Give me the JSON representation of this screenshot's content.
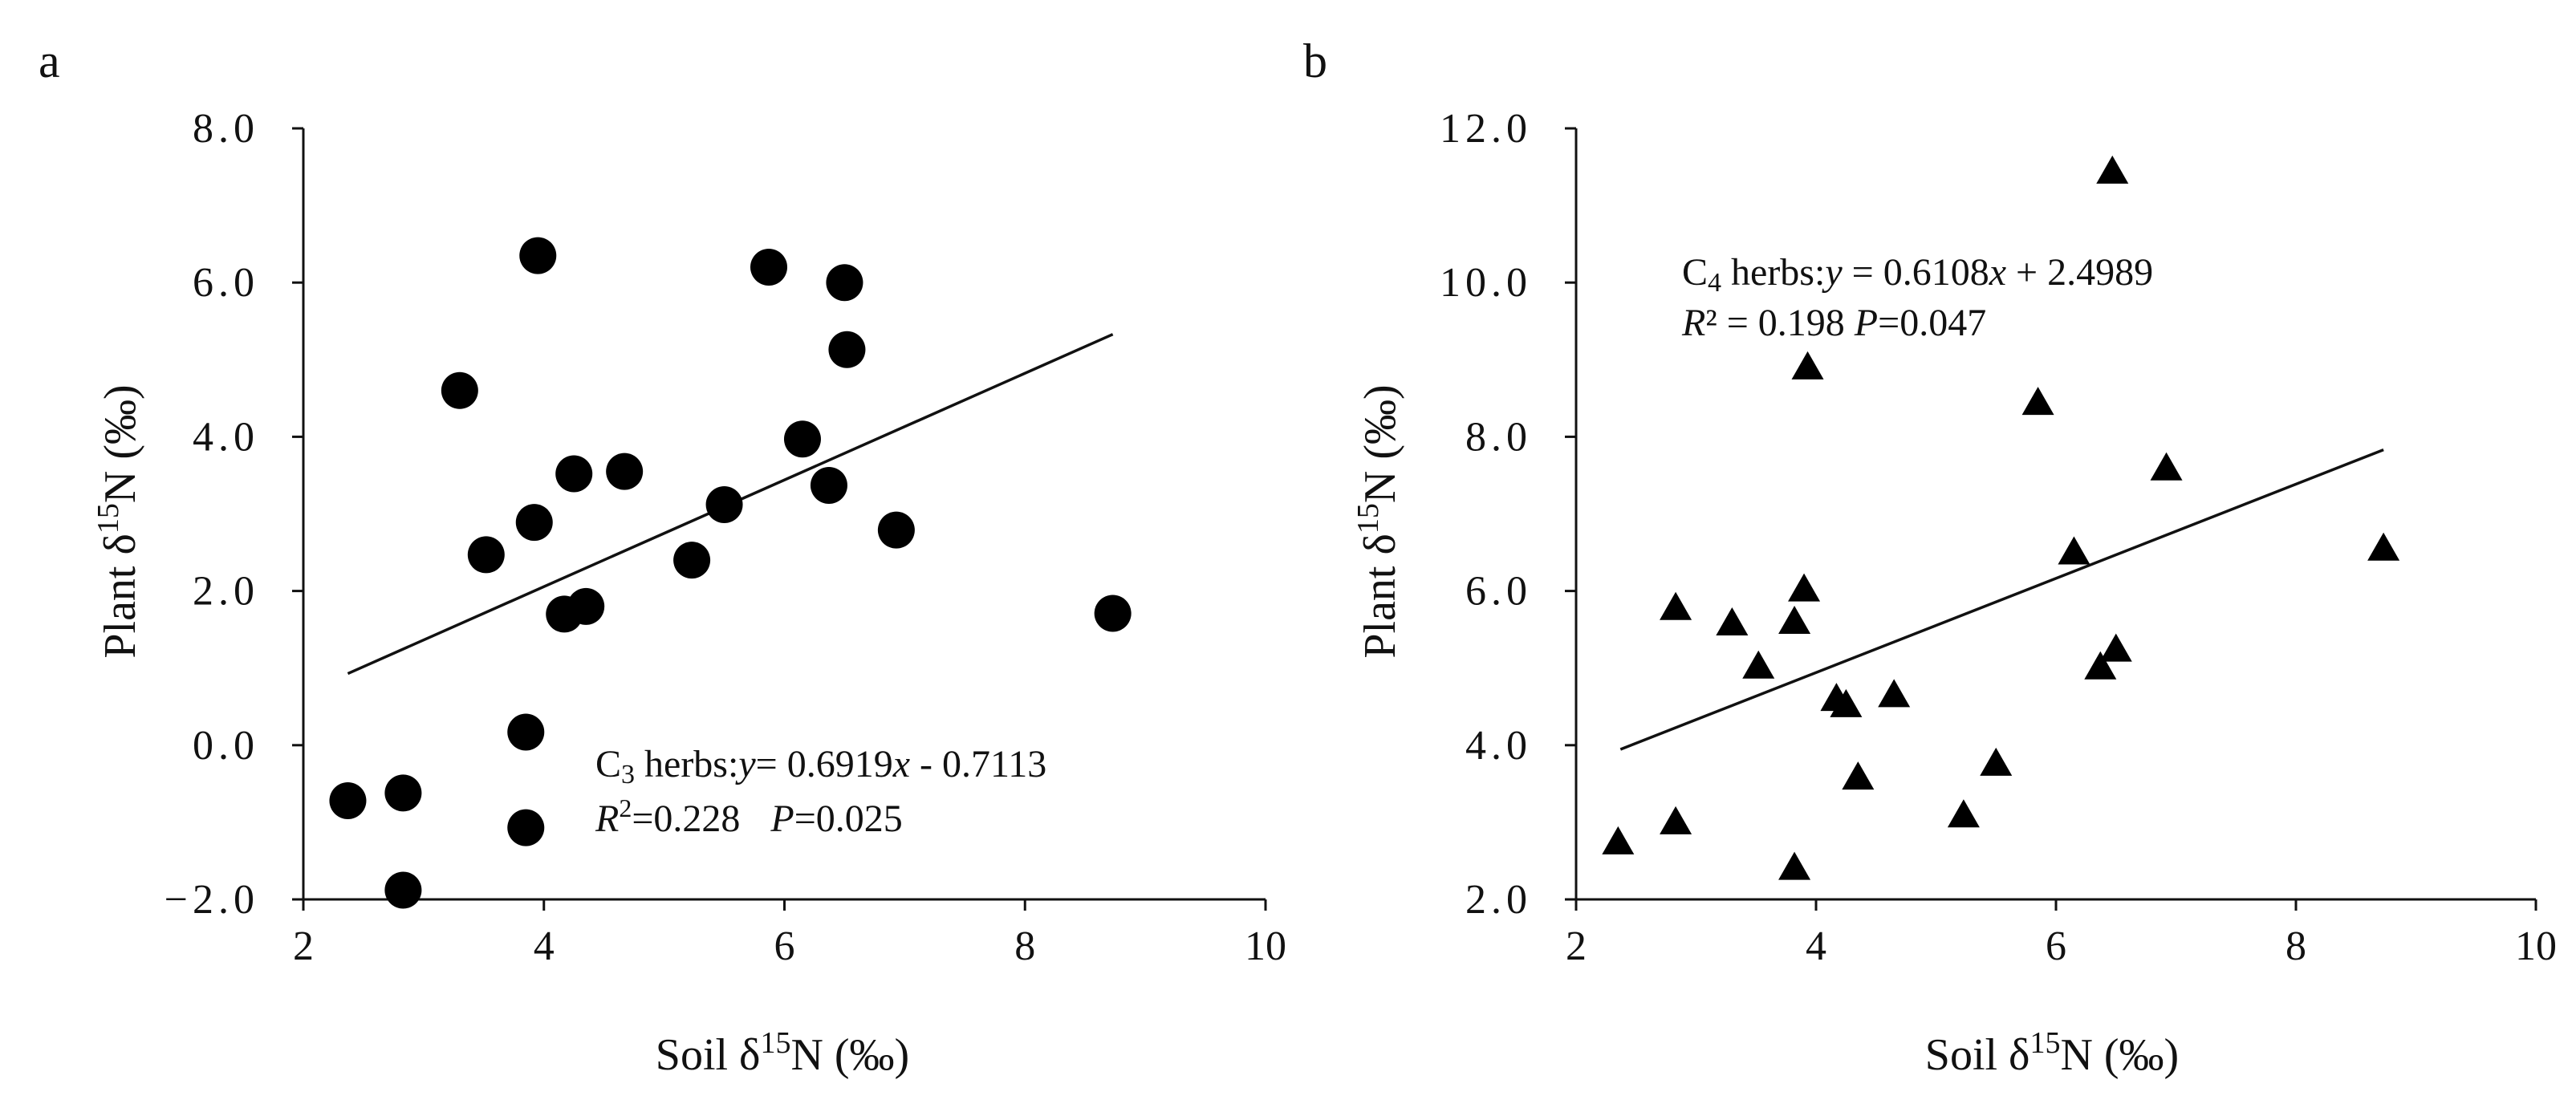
{
  "chart_data": [
    {
      "type": "scatter",
      "panel_letter": "a",
      "marker": "circle",
      "xlabel": "Soil δ15N (‰)",
      "xlabel_parts": [
        "Soil δ",
        "15",
        "N (‰)"
      ],
      "ylabel": "Plant δ15N (‰)",
      "ylabel_parts": [
        "Plant δ",
        "15",
        "N (‰)"
      ],
      "xlim": [
        2,
        10
      ],
      "ylim": [
        -2.0,
        8.0
      ],
      "xticks": [
        2,
        4,
        6,
        8,
        10
      ],
      "xtick_labels": [
        "2",
        "4",
        "6",
        "8",
        "10"
      ],
      "yticks": [
        -2,
        0,
        2,
        4,
        6,
        8
      ],
      "ytick_labels": [
        "−2.0",
        "0.0",
        "2.0",
        "4.0",
        "6.0",
        "8.0"
      ],
      "points": [
        {
          "x": 2.37,
          "y": -0.72
        },
        {
          "x": 2.83,
          "y": -0.62
        },
        {
          "x": 2.83,
          "y": -1.88
        },
        {
          "x": 3.3,
          "y": 4.6
        },
        {
          "x": 3.52,
          "y": 2.47
        },
        {
          "x": 3.85,
          "y": 0.17
        },
        {
          "x": 3.85,
          "y": -1.07
        },
        {
          "x": 3.92,
          "y": 2.89
        },
        {
          "x": 3.95,
          "y": 6.35
        },
        {
          "x": 4.17,
          "y": 1.7
        },
        {
          "x": 4.25,
          "y": 3.52
        },
        {
          "x": 4.35,
          "y": 1.8
        },
        {
          "x": 4.67,
          "y": 3.55
        },
        {
          "x": 5.23,
          "y": 2.4
        },
        {
          "x": 5.5,
          "y": 3.12
        },
        {
          "x": 5.87,
          "y": 6.2
        },
        {
          "x": 6.15,
          "y": 3.97
        },
        {
          "x": 6.37,
          "y": 3.37
        },
        {
          "x": 6.5,
          "y": 6.0
        },
        {
          "x": 6.52,
          "y": 5.13
        },
        {
          "x": 6.93,
          "y": 2.79
        },
        {
          "x": 8.73,
          "y": 1.71
        }
      ],
      "trendline": {
        "slope": 0.6919,
        "intercept": -0.7113,
        "x_range": [
          2.37,
          8.73
        ]
      },
      "equation": {
        "prefix": "C",
        "subscript": "3",
        "label": " herbs:",
        "y_var": "y",
        "formula": "= 0.6919",
        "x_var": "x",
        "rest": " - 0.7113"
      },
      "stats": {
        "r_label": "R",
        "r_sup": "2",
        "r_value": "=0.228",
        "p_label": "P",
        "p_value": "=0.025"
      }
    },
    {
      "type": "scatter",
      "panel_letter": "b",
      "marker": "triangle",
      "xlabel": "Soil δ15N (‰)",
      "xlabel_parts": [
        "Soil δ",
        "15",
        "N (‰)"
      ],
      "ylabel": "Plant δ15N (‰)",
      "ylabel_parts": [
        "Plant δ",
        "15",
        "N (‰)"
      ],
      "xlim": [
        2,
        10
      ],
      "ylim": [
        2.0,
        12.0
      ],
      "xticks": [
        2,
        4,
        6,
        8,
        10
      ],
      "xtick_labels": [
        "2",
        "4",
        "6",
        "8",
        "10"
      ],
      "yticks": [
        2,
        4,
        6,
        8,
        10,
        12
      ],
      "ytick_labels": [
        "2.0",
        "4.0",
        "6.0",
        "8.0",
        "10.0",
        "12.0"
      ],
      "points": [
        {
          "x": 2.35,
          "y": 2.74
        },
        {
          "x": 2.83,
          "y": 5.78
        },
        {
          "x": 2.83,
          "y": 3.0
        },
        {
          "x": 3.3,
          "y": 5.58
        },
        {
          "x": 3.52,
          "y": 5.02
        },
        {
          "x": 3.82,
          "y": 5.6
        },
        {
          "x": 3.82,
          "y": 2.41
        },
        {
          "x": 3.9,
          "y": 6.02
        },
        {
          "x": 3.93,
          "y": 8.9
        },
        {
          "x": 4.17,
          "y": 4.6
        },
        {
          "x": 4.25,
          "y": 4.52
        },
        {
          "x": 4.35,
          "y": 3.58
        },
        {
          "x": 4.65,
          "y": 4.65
        },
        {
          "x": 5.23,
          "y": 3.09
        },
        {
          "x": 5.5,
          "y": 3.76
        },
        {
          "x": 5.85,
          "y": 8.44
        },
        {
          "x": 6.15,
          "y": 6.5
        },
        {
          "x": 6.37,
          "y": 5.01
        },
        {
          "x": 6.47,
          "y": 11.44
        },
        {
          "x": 6.5,
          "y": 5.24
        },
        {
          "x": 6.92,
          "y": 7.59
        },
        {
          "x": 8.73,
          "y": 6.55
        }
      ],
      "trendline": {
        "slope": 0.6108,
        "intercept": 2.4989,
        "x_range": [
          2.37,
          8.73
        ]
      },
      "equation": {
        "prefix": "C",
        "subscript": "4",
        "label": " herbs:",
        "y_var": "y",
        "formula": " = 0.6108",
        "x_var": "x",
        "rest": " + 2.4989"
      },
      "stats": {
        "r_label": "R",
        "r_sup": "²",
        "r_value": " = 0.198  ",
        "p_label": "P",
        "p_value": "=0.047"
      }
    }
  ]
}
